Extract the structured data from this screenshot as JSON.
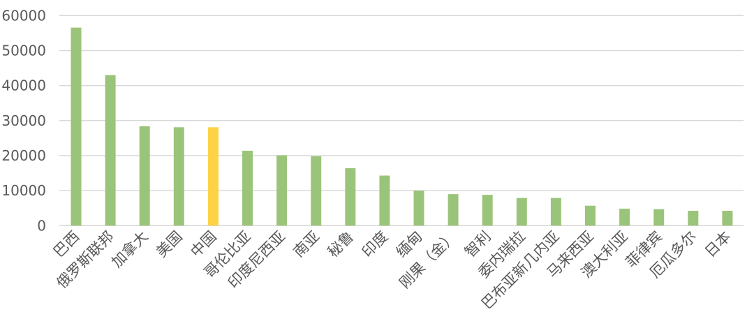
{
  "chart_data": {
    "type": "bar",
    "title": "",
    "xlabel": "",
    "ylabel": "",
    "ylim": [
      0,
      60000
    ],
    "yticks": [
      0,
      10000,
      20000,
      30000,
      40000,
      50000,
      60000
    ],
    "grid": true,
    "legend": "none",
    "categories": [
      "巴西",
      "俄罗斯联邦",
      "加拿大",
      "美国",
      "中国",
      "哥伦比亚",
      "印度尼西亚",
      "南亚",
      "秘鲁",
      "印度",
      "缅甸",
      "刚果（金）",
      "智利",
      "委内瑞拉",
      "巴布亚新几内亚",
      "马来西亚",
      "澳大利亚",
      "菲律宾",
      "厄瓜多尔",
      "日本"
    ],
    "values": [
      56550,
      43000,
      28370,
      28100,
      28100,
      21400,
      20100,
      19800,
      16400,
      14300,
      10000,
      9000,
      8800,
      7900,
      7900,
      5700,
      4850,
      4700,
      4250,
      4250
    ],
    "colors": {
      "default": "#9BC47B",
      "highlight": "#FFD246",
      "highlight_category": "中国",
      "grid": "#D9D9D9"
    }
  }
}
